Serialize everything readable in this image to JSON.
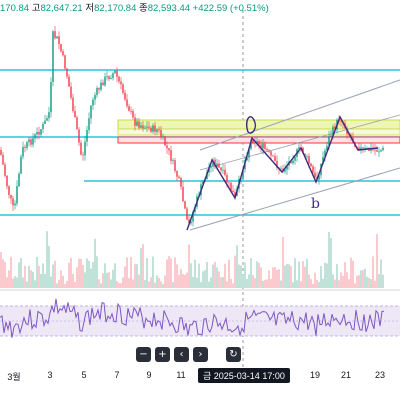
{
  "ohlc": {
    "open_value": "170.84",
    "high_label": "고",
    "high_value": "82,647.21",
    "low_label": "저",
    "low_value": "82,170.84",
    "close_label": "종",
    "close_value": "82,593.44",
    "change": "+422.59 (+0.51%)"
  },
  "colors": {
    "up": "#089981",
    "down": "#f23645",
    "cyan_level": "#26c6da",
    "yellow_zone": "#c9dd3c",
    "red_zone": "#f23645",
    "channel": "#9aa0b4",
    "annotation": "#3f2a7a",
    "oscillator": "#7e57c2"
  },
  "annotations": {
    "wave_mark": "b"
  },
  "toolbar": {
    "zoom_out": "−",
    "zoom_in": "+",
    "scroll_left": "‹",
    "scroll_right": "›",
    "reset": "↻"
  },
  "date_axis": {
    "ticks": [
      "3월",
      "3",
      "5",
      "7",
      "9",
      "11",
      "19",
      "21",
      "23"
    ],
    "crosshair": "금 2025-03-14   17:00"
  }
}
